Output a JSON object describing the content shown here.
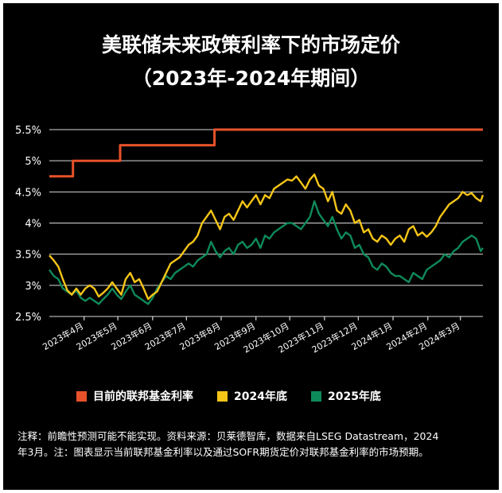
{
  "title": {
    "line1": "美联储未来政策利率下的市场定价",
    "line2": "（2023年-2024年期间）"
  },
  "colors": {
    "background": "#000000",
    "fed_rate": "#E8522A",
    "y2024": "#F5C518",
    "y2025": "#0E8A5A",
    "grid": "#ffffff",
    "text": "#ffffff"
  },
  "legend": [
    {
      "label": "目前的联邦基金利率",
      "color": "#E8522A"
    },
    {
      "label": "2024年底",
      "color": "#F5C518"
    },
    {
      "label": "2025年底",
      "color": "#0E8A5A"
    }
  ],
  "footnote": {
    "line1": "注释：前瞻性预测可能不能实现。资料来源：贝莱德智库，数据来自LSEG Datastream，2024",
    "line2": "年3月。注：图表显示当前联邦基金利率以及通过SOFR期货定价对联邦基金利率的市场预期。"
  },
  "chart_data": {
    "type": "line",
    "title": "美联储未来政策利率下的市场定价（2023年-2024年期间）",
    "xlabel": "",
    "ylabel": "",
    "y_tick_labels": [
      "2.5%",
      "3%",
      "3.5%",
      "4%",
      "4.5%",
      "5%",
      "5.5%"
    ],
    "y_ticks": [
      2.5,
      3.0,
      3.5,
      4.0,
      4.5,
      5.0,
      5.5
    ],
    "ylim": [
      2.5,
      5.5
    ],
    "x_tick_labels": [
      "2023年4月",
      "2023年5月",
      "2023年6月",
      "2023年7月",
      "2023年8月",
      "2023年9月",
      "2023年10月",
      "2023年11月",
      "2023年12月",
      "2024年1月",
      "2024年2月",
      "2024年3月"
    ],
    "x_ticks": [
      "2023-04-01",
      "2023-05-01",
      "2023-06-01",
      "2023-07-01",
      "2023-08-01",
      "2023-09-01",
      "2023-10-01",
      "2023-11-01",
      "2023-12-01",
      "2024-01-01",
      "2024-02-01",
      "2024-03-01"
    ],
    "xlim": [
      "2023-03-01",
      "2024-03-21"
    ],
    "grid": "horizontal",
    "legend_position": "bottom",
    "series": [
      {
        "name": "目前的联邦基金利率",
        "color": "#E8522A",
        "step": true,
        "x": [
          "2023-03-01",
          "2023-03-22",
          "2023-05-03",
          "2023-07-26",
          "2024-03-21"
        ],
        "y": [
          4.75,
          5.0,
          5.25,
          5.5,
          5.5
        ]
      },
      {
        "name": "2024年底",
        "color": "#F5C518",
        "x": [
          "2023-03-01",
          "2023-03-05",
          "2023-03-09",
          "2023-03-13",
          "2023-03-17",
          "2023-03-21",
          "2023-03-25",
          "2023-03-29",
          "2023-04-02",
          "2023-04-06",
          "2023-04-10",
          "2023-04-14",
          "2023-04-18",
          "2023-04-22",
          "2023-04-26",
          "2023-04-30",
          "2023-05-04",
          "2023-05-08",
          "2023-05-12",
          "2023-05-16",
          "2023-05-20",
          "2023-05-24",
          "2023-05-28",
          "2023-06-01",
          "2023-06-05",
          "2023-06-09",
          "2023-06-13",
          "2023-06-17",
          "2023-06-21",
          "2023-06-25",
          "2023-06-29",
          "2023-07-03",
          "2023-07-07",
          "2023-07-11",
          "2023-07-15",
          "2023-07-19",
          "2023-07-23",
          "2023-07-27",
          "2023-07-31",
          "2023-08-04",
          "2023-08-08",
          "2023-08-12",
          "2023-08-16",
          "2023-08-20",
          "2023-08-24",
          "2023-08-28",
          "2023-09-01",
          "2023-09-05",
          "2023-09-09",
          "2023-09-13",
          "2023-09-17",
          "2023-09-21",
          "2023-09-25",
          "2023-09-29",
          "2023-10-03",
          "2023-10-07",
          "2023-10-11",
          "2023-10-15",
          "2023-10-19",
          "2023-10-23",
          "2023-10-27",
          "2023-10-31",
          "2023-11-04",
          "2023-11-08",
          "2023-11-12",
          "2023-11-16",
          "2023-11-20",
          "2023-11-24",
          "2023-11-28",
          "2023-12-02",
          "2023-12-06",
          "2023-12-10",
          "2023-12-14",
          "2023-12-18",
          "2023-12-22",
          "2023-12-26",
          "2023-12-30",
          "2024-01-03",
          "2024-01-07",
          "2024-01-11",
          "2024-01-15",
          "2024-01-19",
          "2024-01-23",
          "2024-01-27",
          "2024-01-31",
          "2024-02-04",
          "2024-02-08",
          "2024-02-12",
          "2024-02-16",
          "2024-02-20",
          "2024-02-24",
          "2024-02-28",
          "2024-03-03",
          "2024-03-07",
          "2024-03-11",
          "2024-03-15",
          "2024-03-19",
          "2024-03-21"
        ],
        "y": [
          3.48,
          3.4,
          3.3,
          3.1,
          2.92,
          2.85,
          2.95,
          2.85,
          2.95,
          3.0,
          2.95,
          2.82,
          2.88,
          2.95,
          3.05,
          2.95,
          2.85,
          3.1,
          3.2,
          3.05,
          3.1,
          2.95,
          2.78,
          2.85,
          2.9,
          3.05,
          3.2,
          3.35,
          3.4,
          3.45,
          3.55,
          3.65,
          3.7,
          3.8,
          4.0,
          4.1,
          4.2,
          4.05,
          3.9,
          4.1,
          4.15,
          4.05,
          4.2,
          4.35,
          4.25,
          4.35,
          4.45,
          4.3,
          4.45,
          4.4,
          4.55,
          4.6,
          4.65,
          4.7,
          4.68,
          4.75,
          4.65,
          4.55,
          4.7,
          4.78,
          4.6,
          4.55,
          4.35,
          4.5,
          4.2,
          4.15,
          4.3,
          4.2,
          4.0,
          4.05,
          3.85,
          3.9,
          3.75,
          3.7,
          3.8,
          3.75,
          3.65,
          3.75,
          3.8,
          3.7,
          3.9,
          3.95,
          3.8,
          3.85,
          3.78,
          3.85,
          3.95,
          4.1,
          4.2,
          4.3,
          4.35,
          4.4,
          4.5,
          4.45,
          4.48,
          4.4,
          4.35,
          4.45
        ]
      },
      {
        "name": "2025年底",
        "color": "#0E8A5A",
        "x": [
          "2023-03-01",
          "2023-03-05",
          "2023-03-09",
          "2023-03-13",
          "2023-03-17",
          "2023-03-21",
          "2023-03-25",
          "2023-03-29",
          "2023-04-02",
          "2023-04-06",
          "2023-04-10",
          "2023-04-14",
          "2023-04-18",
          "2023-04-22",
          "2023-04-26",
          "2023-04-30",
          "2023-05-04",
          "2023-05-08",
          "2023-05-12",
          "2023-05-16",
          "2023-05-20",
          "2023-05-24",
          "2023-05-28",
          "2023-06-01",
          "2023-06-05",
          "2023-06-09",
          "2023-06-13",
          "2023-06-17",
          "2023-06-21",
          "2023-06-25",
          "2023-06-29",
          "2023-07-03",
          "2023-07-07",
          "2023-07-11",
          "2023-07-15",
          "2023-07-19",
          "2023-07-23",
          "2023-07-27",
          "2023-07-31",
          "2023-08-04",
          "2023-08-08",
          "2023-08-12",
          "2023-08-16",
          "2023-08-20",
          "2023-08-24",
          "2023-08-28",
          "2023-09-01",
          "2023-09-05",
          "2023-09-09",
          "2023-09-13",
          "2023-09-17",
          "2023-09-21",
          "2023-09-25",
          "2023-09-29",
          "2023-10-03",
          "2023-10-07",
          "2023-10-11",
          "2023-10-15",
          "2023-10-19",
          "2023-10-23",
          "2023-10-27",
          "2023-10-31",
          "2023-11-04",
          "2023-11-08",
          "2023-11-12",
          "2023-11-16",
          "2023-11-20",
          "2023-11-24",
          "2023-11-28",
          "2023-12-02",
          "2023-12-06",
          "2023-12-10",
          "2023-12-14",
          "2023-12-18",
          "2023-12-22",
          "2023-12-26",
          "2023-12-30",
          "2024-01-03",
          "2024-01-07",
          "2024-01-11",
          "2024-01-15",
          "2024-01-19",
          "2024-01-23",
          "2024-01-27",
          "2024-01-31",
          "2024-02-04",
          "2024-02-08",
          "2024-02-12",
          "2024-02-16",
          "2024-02-20",
          "2024-02-24",
          "2024-02-28",
          "2024-03-03",
          "2024-03-07",
          "2024-03-11",
          "2024-03-15",
          "2024-03-19",
          "2024-03-21"
        ],
        "y": [
          3.25,
          3.15,
          3.1,
          2.95,
          2.9,
          2.85,
          2.92,
          2.8,
          2.75,
          2.8,
          2.75,
          2.7,
          2.78,
          2.85,
          2.95,
          2.85,
          2.78,
          2.9,
          3.0,
          2.85,
          2.8,
          2.75,
          2.7,
          2.8,
          2.95,
          3.05,
          3.15,
          3.1,
          3.2,
          3.25,
          3.3,
          3.35,
          3.3,
          3.4,
          3.45,
          3.5,
          3.7,
          3.55,
          3.45,
          3.55,
          3.6,
          3.5,
          3.65,
          3.7,
          3.6,
          3.65,
          3.75,
          3.6,
          3.8,
          3.75,
          3.85,
          3.9,
          3.95,
          4.0,
          4.0,
          3.95,
          3.9,
          4.0,
          4.1,
          4.35,
          4.15,
          4.05,
          3.95,
          4.1,
          3.9,
          3.75,
          3.85,
          3.8,
          3.6,
          3.65,
          3.5,
          3.45,
          3.3,
          3.25,
          3.35,
          3.3,
          3.2,
          3.15,
          3.15,
          3.1,
          3.05,
          3.2,
          3.15,
          3.1,
          3.25,
          3.3,
          3.35,
          3.4,
          3.5,
          3.45,
          3.55,
          3.6,
          3.7,
          3.75,
          3.8,
          3.75,
          3.55,
          3.6
        ]
      }
    ]
  }
}
